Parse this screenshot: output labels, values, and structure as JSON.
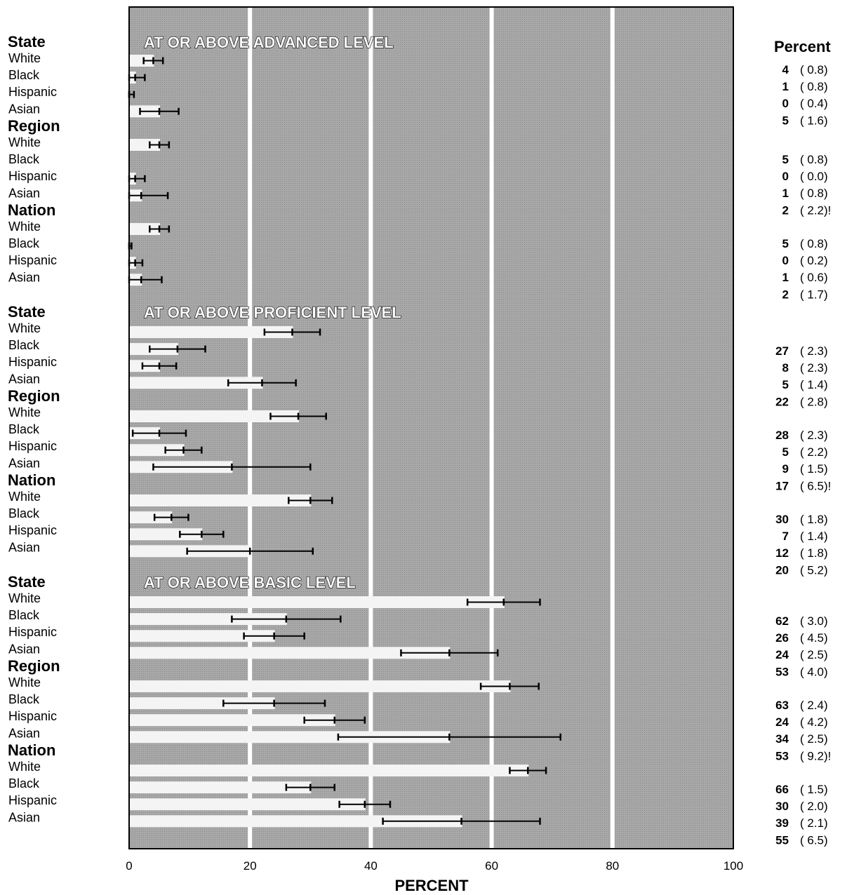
{
  "chart_data": {
    "type": "bar",
    "orientation": "horizontal",
    "xlabel": "PERCENT",
    "xlim": [
      0,
      100
    ],
    "xticks": [
      "0",
      "20",
      "40",
      "60",
      "80",
      "100"
    ],
    "right_header": "Percent",
    "sections": [
      {
        "title": "AT OR ABOVE ADVANCED LEVEL",
        "groups": [
          {
            "name": "State",
            "rows": [
              {
                "label": "White",
                "value": 4,
                "se": "0.8",
                "note": ""
              },
              {
                "label": "Black",
                "value": 1,
                "se": "0.8",
                "note": ""
              },
              {
                "label": "Hispanic",
                "value": 0,
                "se": "0.4",
                "note": ""
              },
              {
                "label": "Asian",
                "value": 5,
                "se": "1.6",
                "note": ""
              }
            ]
          },
          {
            "name": "Region",
            "rows": [
              {
                "label": "White",
                "value": 5,
                "se": "0.8",
                "note": ""
              },
              {
                "label": "Black",
                "value": 0,
                "se": "0.0",
                "note": ""
              },
              {
                "label": "Hispanic",
                "value": 1,
                "se": "0.8",
                "note": ""
              },
              {
                "label": "Asian",
                "value": 2,
                "se": "2.2",
                "note": "!"
              }
            ]
          },
          {
            "name": "Nation",
            "rows": [
              {
                "label": "White",
                "value": 5,
                "se": "0.8",
                "note": ""
              },
              {
                "label": "Black",
                "value": 0,
                "se": "0.2",
                "note": ""
              },
              {
                "label": "Hispanic",
                "value": 1,
                "se": "0.6",
                "note": ""
              },
              {
                "label": "Asian",
                "value": 2,
                "se": "1.7",
                "note": ""
              }
            ]
          }
        ]
      },
      {
        "title": "AT OR ABOVE PROFICIENT LEVEL",
        "groups": [
          {
            "name": "State",
            "rows": [
              {
                "label": "White",
                "value": 27,
                "se": "2.3",
                "note": ""
              },
              {
                "label": "Black",
                "value": 8,
                "se": "2.3",
                "note": ""
              },
              {
                "label": "Hispanic",
                "value": 5,
                "se": "1.4",
                "note": ""
              },
              {
                "label": "Asian",
                "value": 22,
                "se": "2.8",
                "note": ""
              }
            ]
          },
          {
            "name": "Region",
            "rows": [
              {
                "label": "White",
                "value": 28,
                "se": "2.3",
                "note": ""
              },
              {
                "label": "Black",
                "value": 5,
                "se": "2.2",
                "note": ""
              },
              {
                "label": "Hispanic",
                "value": 9,
                "se": "1.5",
                "note": ""
              },
              {
                "label": "Asian",
                "value": 17,
                "se": "6.5",
                "note": "!"
              }
            ]
          },
          {
            "name": "Nation",
            "rows": [
              {
                "label": "White",
                "value": 30,
                "se": "1.8",
                "note": ""
              },
              {
                "label": "Black",
                "value": 7,
                "se": "1.4",
                "note": ""
              },
              {
                "label": "Hispanic",
                "value": 12,
                "se": "1.8",
                "note": ""
              },
              {
                "label": "Asian",
                "value": 20,
                "se": "5.2",
                "note": ""
              }
            ]
          }
        ]
      },
      {
        "title": "AT OR ABOVE BASIC LEVEL",
        "groups": [
          {
            "name": "State",
            "rows": [
              {
                "label": "White",
                "value": 62,
                "se": "3.0",
                "note": ""
              },
              {
                "label": "Black",
                "value": 26,
                "se": "4.5",
                "note": ""
              },
              {
                "label": "Hispanic",
                "value": 24,
                "se": "2.5",
                "note": ""
              },
              {
                "label": "Asian",
                "value": 53,
                "se": "4.0",
                "note": ""
              }
            ]
          },
          {
            "name": "Region",
            "rows": [
              {
                "label": "White",
                "value": 63,
                "se": "2.4",
                "note": ""
              },
              {
                "label": "Black",
                "value": 24,
                "se": "4.2",
                "note": ""
              },
              {
                "label": "Hispanic",
                "value": 34,
                "se": "2.5",
                "note": ""
              },
              {
                "label": "Asian",
                "value": 53,
                "se": "9.2",
                "note": "!"
              }
            ]
          },
          {
            "name": "Nation",
            "rows": [
              {
                "label": "White",
                "value": 66,
                "se": "1.5",
                "note": ""
              },
              {
                "label": "Black",
                "value": 30,
                "se": "2.0",
                "note": ""
              },
              {
                "label": "Hispanic",
                "value": 39,
                "se": "2.1",
                "note": ""
              },
              {
                "label": "Asian",
                "value": 55,
                "se": "6.5",
                "note": ""
              }
            ]
          }
        ]
      }
    ]
  },
  "colors": {
    "plot_background": "#a8a8a8",
    "bar": "#f4f4f4",
    "gridline": "#ffffff",
    "text": "#000000"
  }
}
